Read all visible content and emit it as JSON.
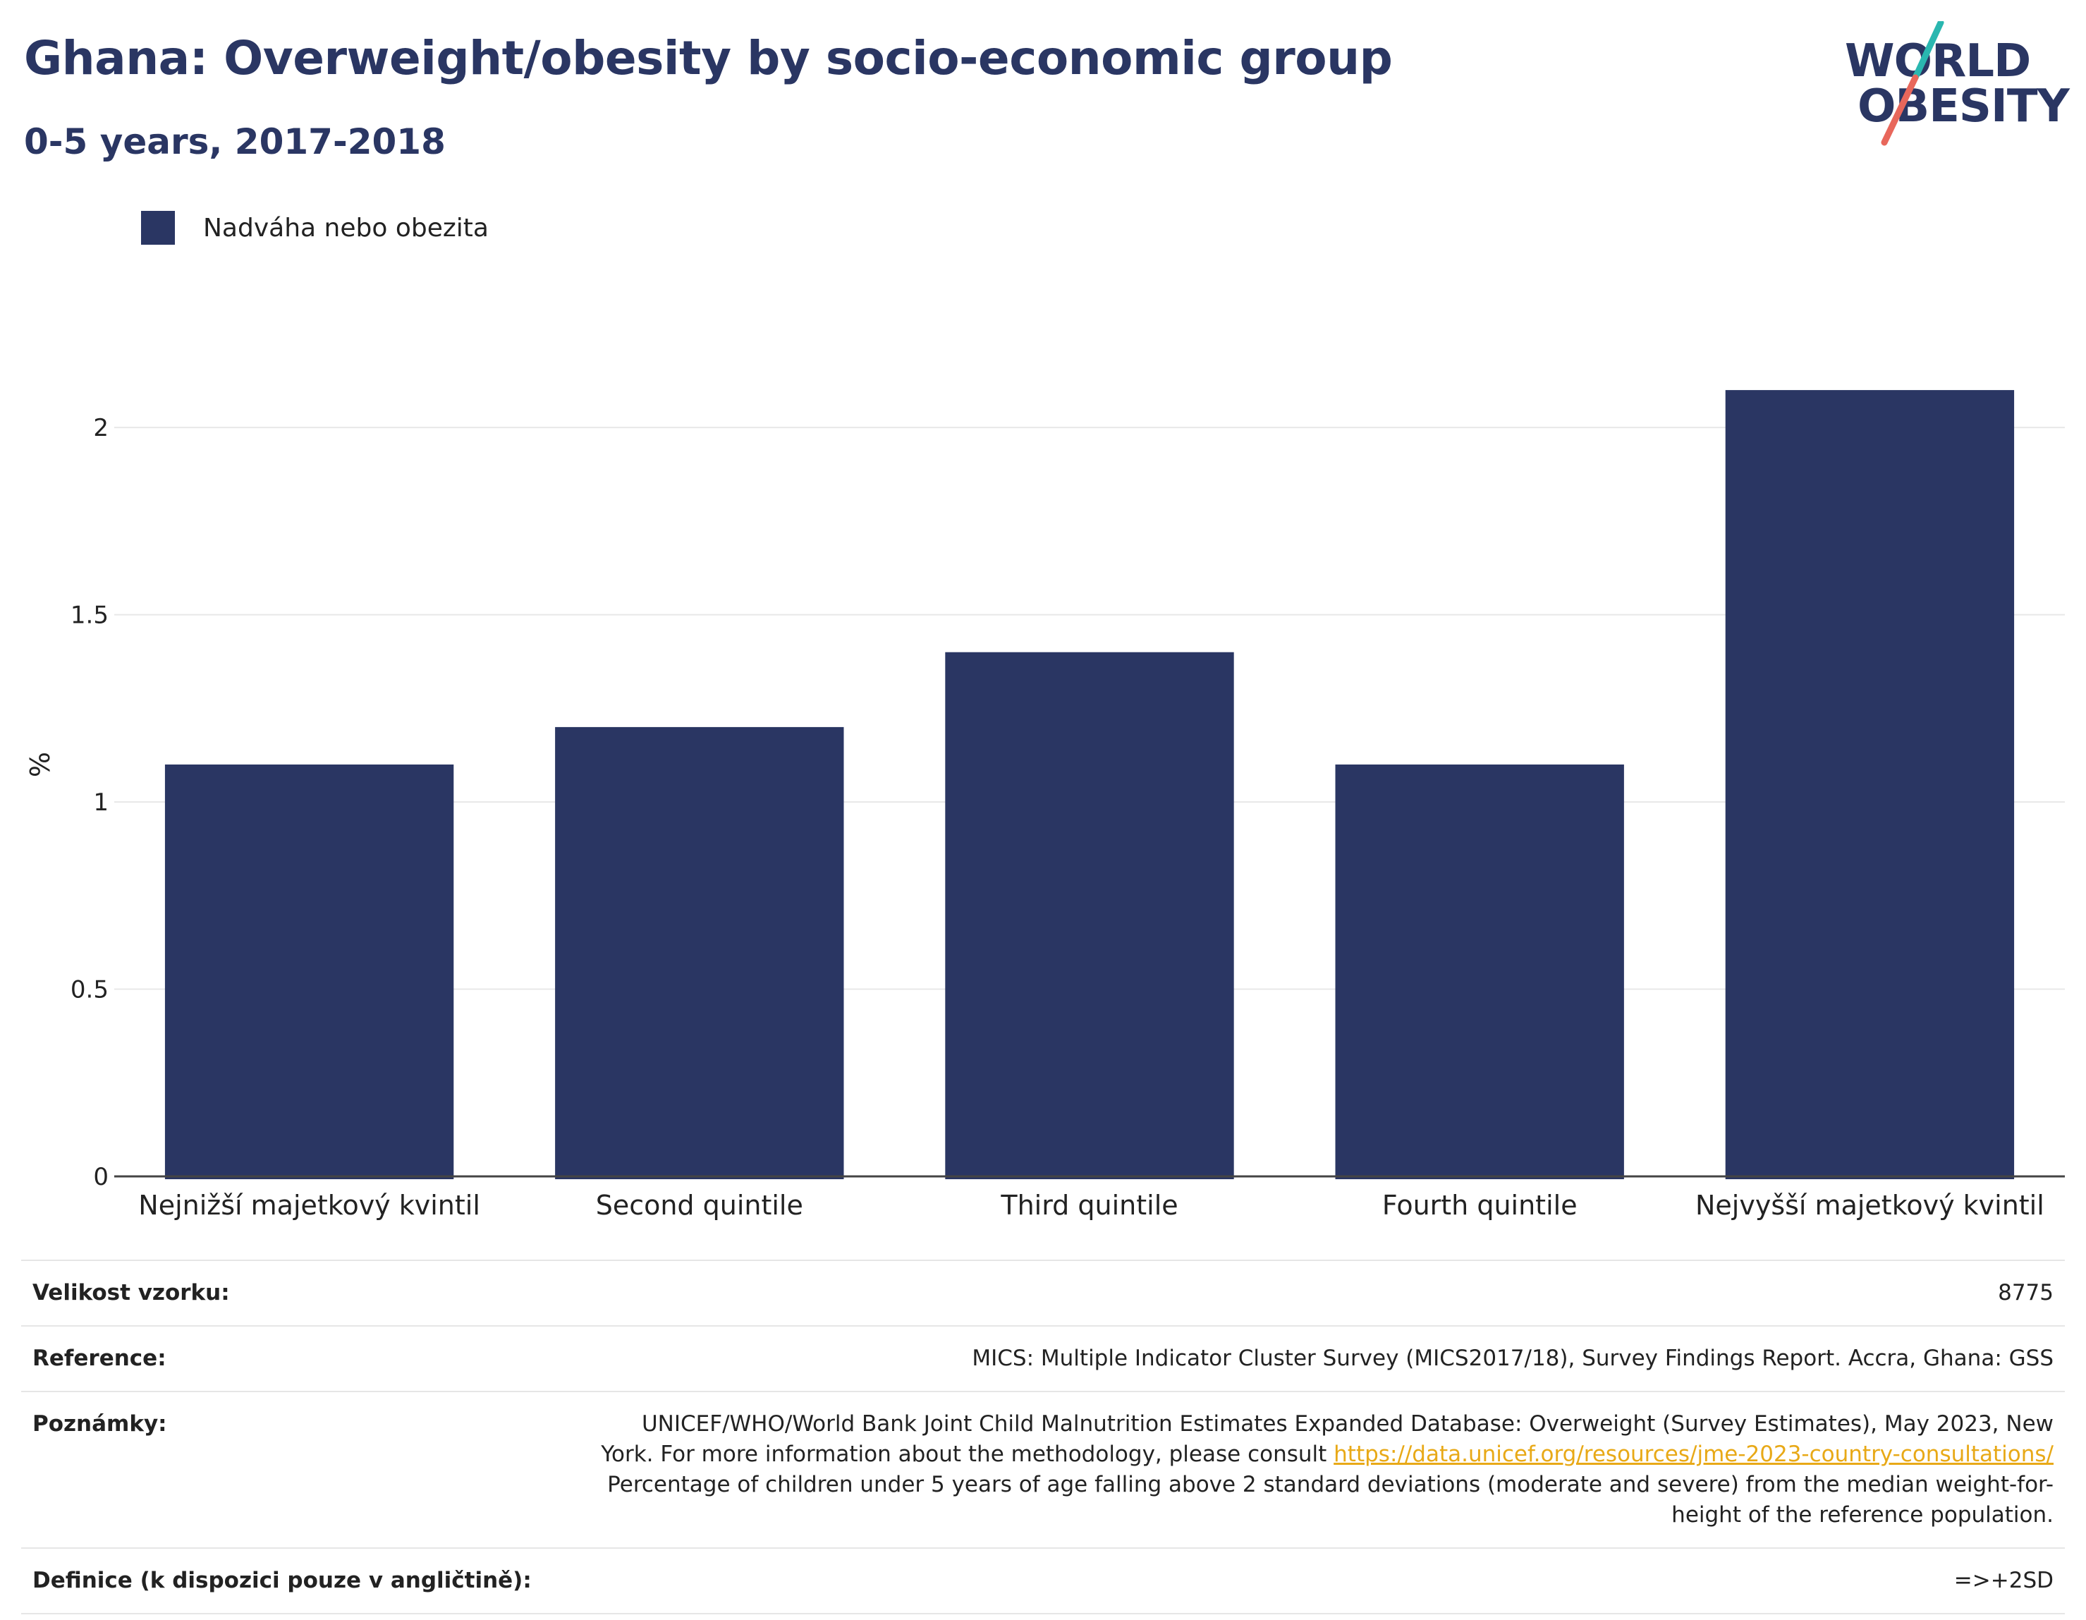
{
  "header": {
    "title": "Ghana: Overweight/obesity by socio-economic group",
    "subtitle": "0-5 years, 2017-2018"
  },
  "logo": {
    "line1": "WORLD",
    "line2": "OBESITY",
    "slash_colors": [
      "#2ab7b0",
      "#e8675b"
    ]
  },
  "legend": {
    "label": "Nadváha nebo obezita",
    "color": "#2a3663"
  },
  "chart_data": {
    "type": "bar",
    "categories": [
      "Nejnižší majetkový kvintil",
      "Second quintile",
      "Third quintile",
      "Fourth quintile",
      "Nejvyšší majetkový kvintil"
    ],
    "series": [
      {
        "name": "Nadváha nebo obezita",
        "values": [
          1.1,
          1.2,
          1.4,
          1.1,
          2.1
        ],
        "color": "#2a3663"
      }
    ],
    "ylabel": "%",
    "ylim": [
      0,
      2.2
    ],
    "yticks": [
      0,
      0.5,
      1,
      1.5,
      2
    ],
    "ytick_labels": [
      "0",
      "0.5",
      "1",
      "1.5",
      "2"
    ],
    "grid": true,
    "legend_position": "top-left"
  },
  "info": {
    "sample_label": "Velikost vzorku:",
    "sample_value": "8775",
    "reference_label": "Reference:",
    "reference_value": "MICS: Multiple Indicator Cluster Survey (MICS2017/18), Survey Findings Report. Accra, Ghana: GSS",
    "notes_label": "Poznámky:",
    "notes_text1": "UNICEF/WHO/World Bank Joint Child Malnutrition Estimates Expanded Database: Overweight (Survey Estimates), May 2023, New York. For more information about the methodology, please consult",
    "notes_link": "https://data.unicef.org/resources/jme-2023-country-consultations/",
    "notes_text2": "Percentage of children under 5 years of age falling above 2 standard deviations (moderate and severe) from the median weight-for-height of the reference population.",
    "definition_label": "Definice (k dispozici pouze v angličtině):",
    "definition_value": "=>+2SD"
  }
}
